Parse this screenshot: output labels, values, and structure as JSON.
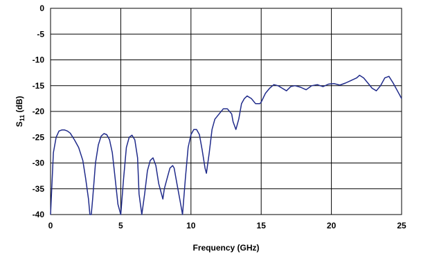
{
  "chart_data": {
    "type": "line",
    "title": "",
    "xlabel": "Frequency (GHz)",
    "ylabel_main": "S",
    "ylabel_sub": "11",
    "ylabel_unit": " (dB)",
    "xlim": [
      0,
      25
    ],
    "ylim": [
      -40,
      0
    ],
    "xticks": [
      "0",
      "5",
      "10",
      "15",
      "20",
      "25"
    ],
    "yticks": [
      "0",
      "-5",
      "-10",
      "-15",
      "-20",
      "-25",
      "-30",
      "-35",
      "-40"
    ],
    "grid": true,
    "legend": "none",
    "colors": {
      "line": "#1f2a8a",
      "grid": "#000000"
    },
    "series": [
      {
        "x": [
          0.0,
          0.2,
          0.4,
          0.6,
          0.8,
          1.0,
          1.2,
          1.4,
          1.7,
          2.0,
          2.3,
          2.5,
          2.7,
          2.8,
          2.9,
          3.0,
          3.2,
          3.4,
          3.6,
          3.8,
          4.0,
          4.2,
          4.4,
          4.6,
          4.8,
          5.0,
          5.2,
          5.4,
          5.6,
          5.8,
          6.0,
          6.2,
          6.3,
          6.5,
          6.7,
          6.9,
          7.1,
          7.3,
          7.5,
          7.7,
          7.9,
          8.0,
          8.1,
          8.3,
          8.5,
          8.7,
          8.8,
          9.0,
          9.2,
          9.4,
          9.6,
          9.8,
          10.0,
          10.2,
          10.4,
          10.6,
          10.8,
          11.0,
          11.1,
          11.3,
          11.5,
          11.7,
          12.0,
          12.3,
          12.6,
          12.9,
          13.0,
          13.2,
          13.4,
          13.6,
          13.8,
          14.0,
          14.3,
          14.6,
          14.9,
          15.0,
          15.3,
          15.6,
          15.9,
          16.2,
          16.5,
          16.8,
          17.1,
          17.4,
          17.8,
          18.2,
          18.6,
          19.0,
          19.4,
          19.8,
          20.2,
          20.6,
          21.0,
          21.4,
          21.8,
          22.0,
          22.3,
          22.6,
          22.9,
          23.2,
          23.5,
          23.8,
          24.1,
          24.4,
          24.7,
          25.0
        ],
        "y": [
          -40,
          -28,
          -25,
          -23.8,
          -23.6,
          -23.6,
          -23.8,
          -24.2,
          -25.5,
          -27,
          -29.5,
          -33,
          -37,
          -40,
          -40,
          -37,
          -30,
          -26.5,
          -24.8,
          -24.3,
          -24.5,
          -25.5,
          -28,
          -33,
          -38,
          -40,
          -33,
          -27,
          -25,
          -24.6,
          -25.5,
          -29,
          -36,
          -40,
          -36,
          -31.5,
          -29.5,
          -29,
          -30.5,
          -34,
          -36,
          -37,
          -35,
          -33,
          -31,
          -30.5,
          -31,
          -34,
          -37,
          -40,
          -33,
          -27,
          -24.5,
          -23.5,
          -23.5,
          -24.5,
          -27.5,
          -31,
          -32,
          -28,
          -23.5,
          -21.5,
          -20.5,
          -19.5,
          -19.5,
          -20.5,
          -22,
          -23.5,
          -21.5,
          -18.5,
          -17.5,
          -17,
          -17.5,
          -18.5,
          -18.5,
          -18.2,
          -16.5,
          -15.5,
          -14.8,
          -15,
          -15.5,
          -16,
          -15.2,
          -15,
          -15.3,
          -15.8,
          -15,
          -14.8,
          -15.2,
          -14.7,
          -14.6,
          -14.9,
          -14.5,
          -14,
          -13.5,
          -13,
          -13.5,
          -14.5,
          -15.5,
          -16,
          -15,
          -13.5,
          -13.2,
          -14.5,
          -16,
          -17.5
        ]
      }
    ]
  }
}
